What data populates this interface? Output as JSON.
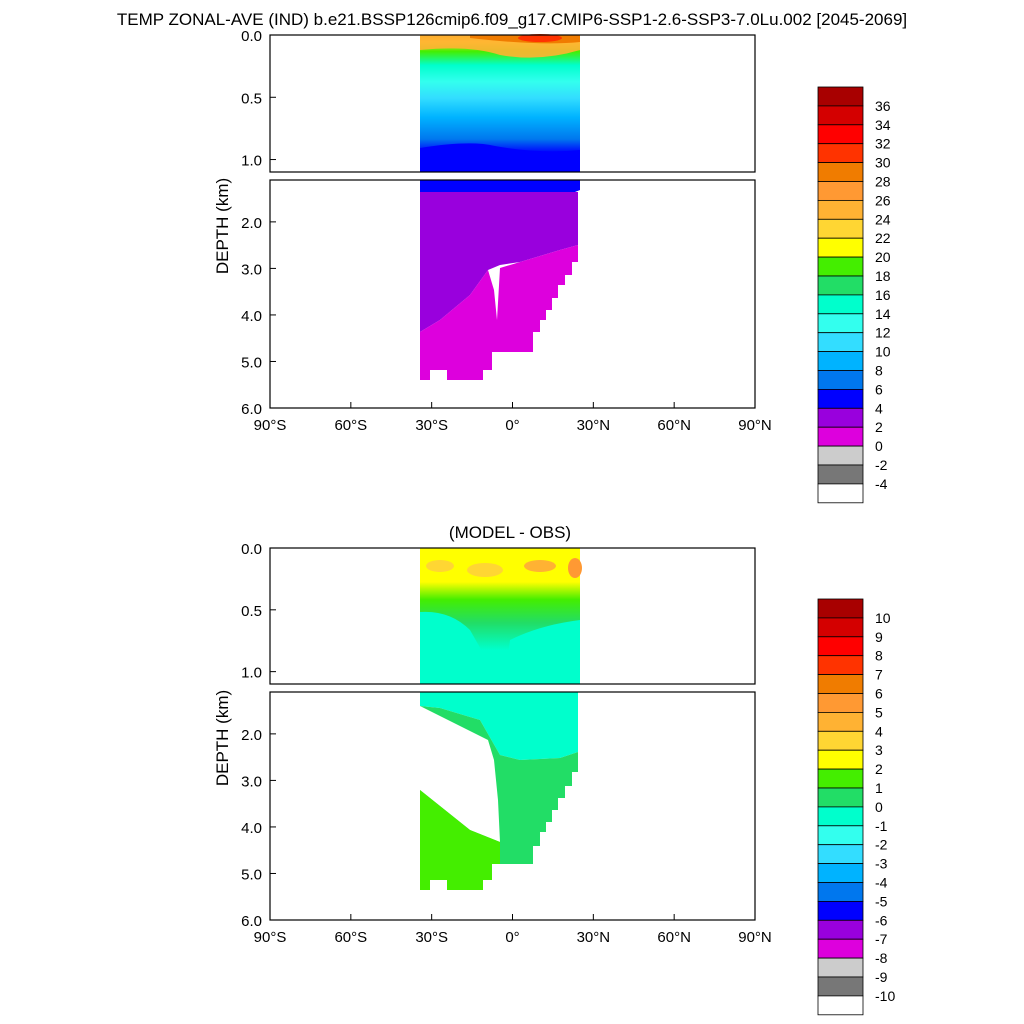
{
  "title": "TEMP ZONAL-AVE (IND) b.e21.BSSP126cmip6.f09_g17.CMIP6-SSP1-2.6-SSP3-7.0Lu.002 [2045-2069]",
  "chart_data": [
    {
      "type": "heatmap",
      "title": "",
      "xlabel": "",
      "ylabel": "DEPTH (km)",
      "x_ticks": [
        "90°S",
        "60°S",
        "30°S",
        "0°",
        "30°N",
        "60°N",
        "90°N"
      ],
      "y_ticks_upper": [
        "0.0",
        "0.5",
        "1.0"
      ],
      "y_ticks_lower": [
        "2.0",
        "3.0",
        "4.0",
        "5.0",
        "6.0"
      ],
      "xlim": [
        -90,
        90
      ],
      "ylim": [
        0,
        6
      ],
      "data_lat_range": [
        -34,
        25
      ],
      "colorbar": {
        "labels": [
          "36",
          "34",
          "32",
          "30",
          "28",
          "26",
          "24",
          "22",
          "20",
          "18",
          "16",
          "14",
          "12",
          "10",
          "8",
          "6",
          "4",
          "2",
          "0",
          "-2",
          "-4"
        ],
        "colors": [
          "#a80000",
          "#d40000",
          "#ff0000",
          "#ff3300",
          "#f07c00",
          "#ff9933",
          "#ffb233",
          "#ffd633",
          "#ffff00",
          "#44ee00",
          "#22dd66",
          "#00ffcc",
          "#33ffee",
          "#33ddff",
          "#00b3ff",
          "#0077ee",
          "#0000ff",
          "#9900dd",
          "#dd00dd",
          "#cccccc",
          "#777777",
          "#ffffff"
        ]
      }
    },
    {
      "type": "heatmap",
      "title": "(MODEL - OBS)",
      "xlabel": "",
      "ylabel": "DEPTH (km)",
      "x_ticks": [
        "90°S",
        "60°S",
        "30°S",
        "0°",
        "30°N",
        "60°N",
        "90°N"
      ],
      "y_ticks_upper": [
        "0.0",
        "0.5",
        "1.0"
      ],
      "y_ticks_lower": [
        "2.0",
        "3.0",
        "4.0",
        "5.0",
        "6.0"
      ],
      "xlim": [
        -90,
        90
      ],
      "ylim": [
        0,
        6
      ],
      "data_lat_range": [
        -34,
        25
      ],
      "colorbar": {
        "labels": [
          "10",
          "9",
          "8",
          "7",
          "6",
          "5",
          "4",
          "3",
          "2",
          "1",
          "0",
          "-1",
          "-2",
          "-3",
          "-4",
          "-5",
          "-6",
          "-7",
          "-8",
          "-9",
          "-10"
        ],
        "colors": [
          "#a80000",
          "#d40000",
          "#ff0000",
          "#ff3300",
          "#f07c00",
          "#ff9933",
          "#ffb233",
          "#ffd633",
          "#ffff00",
          "#44ee00",
          "#22dd66",
          "#00ffcc",
          "#33ffee",
          "#33ddff",
          "#00b3ff",
          "#0077ee",
          "#0000ff",
          "#9900dd",
          "#dd00dd",
          "#cccccc",
          "#777777",
          "#ffffff"
        ]
      }
    }
  ]
}
